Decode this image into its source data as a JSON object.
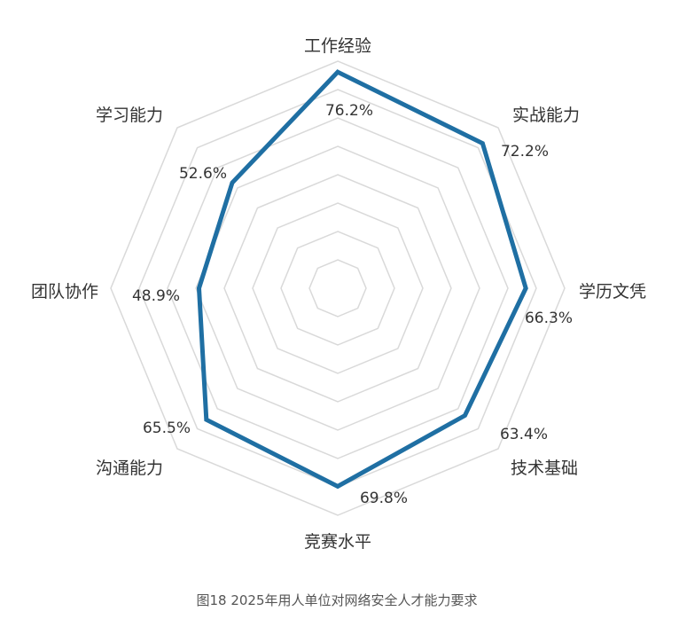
{
  "chart_data": {
    "type": "radar",
    "categories": [
      "工作经验",
      "实战能力",
      "学历文凭",
      "技术基础",
      "竞赛水平",
      "沟通能力",
      "团队协作",
      "学习能力"
    ],
    "series": [
      {
        "values": [
          76.2,
          72.2,
          66.3,
          63.4,
          69.8,
          65.5,
          48.9,
          52.6
        ],
        "value_labels": [
          "76.2%",
          "72.2%",
          "66.3%",
          "63.4%",
          "69.8%",
          "65.5%",
          "48.9%",
          "52.6%"
        ],
        "color": "#1f6fa3"
      }
    ],
    "range": [
      0,
      80
    ],
    "grid": true,
    "grid_color": "#d9d9d9",
    "caption": "图18 2025年用人单位对网络安全人才能力要求"
  }
}
